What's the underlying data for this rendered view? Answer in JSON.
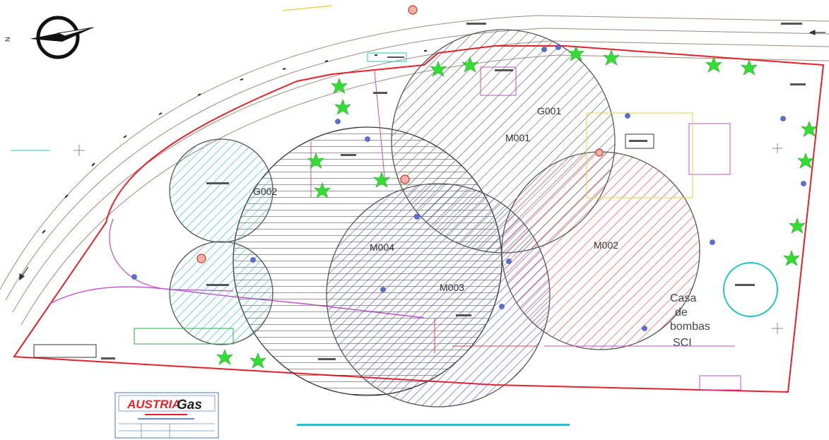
{
  "compass": {
    "north_letter": "N"
  },
  "zones": [
    {
      "code": "G001",
      "label_pos": "upper-right",
      "hatch": "diagonal",
      "color": "#444444"
    },
    {
      "code": "M001",
      "label_pos": "upper",
      "hatch": "diagonal",
      "color": "#444444"
    },
    {
      "code": "M002",
      "label_pos": "right",
      "hatch": "diagonal",
      "color": "#e4434a"
    },
    {
      "code": "M003",
      "label_pos": "center",
      "hatch": "diagonal",
      "color": "#4a45c8"
    },
    {
      "code": "M004",
      "label_pos": "upper-left",
      "hatch": "horizontal",
      "color": "#333333"
    },
    {
      "code": "G002",
      "label_pos": "right",
      "hatch": "diagonal",
      "color": "#1ab5b5"
    }
  ],
  "building_label": {
    "lines": [
      "Casa",
      "de",
      "bombas",
      "SCI"
    ]
  },
  "title_block": {
    "brand_part1": "AUSTRIA",
    "brand_part2": "Gas",
    "accent": "#e4222a"
  },
  "colors": {
    "boundary": "#e4222a",
    "road": "#a08a7a",
    "tree": "#33dd33",
    "tank": "#1ec5c5",
    "yellow_line": "#e6d24a",
    "magenta_line": "#c04fc8"
  }
}
